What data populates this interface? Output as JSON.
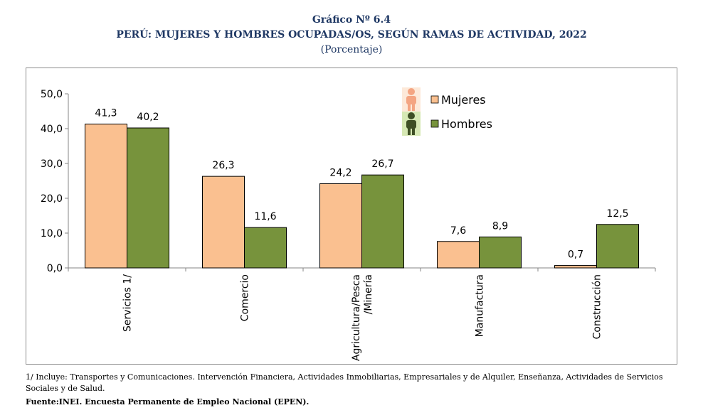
{
  "header": {
    "title": "Gráfico Nº 6.4",
    "subtitle": "PERÚ: MUJERES Y HOMBRES  OCUPADAS/OS, SEGÚN RAMAS DE ACTIVIDAD, 2022",
    "unit": "(Porcentaje)"
  },
  "chart_data": {
    "type": "bar",
    "categories": [
      "Servicios 1/",
      "Comercio",
      "Agricultura/Pesca\n/Minería",
      "Manufactura",
      "Construcción"
    ],
    "series": [
      {
        "name": "Mujeres",
        "values": [
          41.3,
          26.3,
          24.2,
          7.6,
          0.7
        ],
        "labels": [
          "41,3",
          "26,3",
          "24,2",
          "7,6",
          "0,7"
        ],
        "color": "#fac090",
        "icon": "woman-icon"
      },
      {
        "name": "Hombres",
        "values": [
          40.2,
          11.6,
          26.7,
          8.9,
          12.5
        ],
        "labels": [
          "40,2",
          "11,6",
          "26,7",
          "8,9",
          "12,5"
        ],
        "color": "#77933c",
        "icon": "man-icon"
      }
    ],
    "yticks": [
      "0,0",
      "10,0",
      "20,0",
      "30,0",
      "40,0",
      "50,0"
    ],
    "ylim": [
      0,
      50
    ],
    "legend_position": "top-right",
    "grid": false
  },
  "footer": {
    "note": "1/ Incluye: Transportes y Comunicaciones. Intervención Financiera, Actividades Inmobiliarias, Empresariales y de Alquiler, Enseñanza, Actividades de Servicios Sociales y de Salud.",
    "source": "Fuente:INEI. Encuesta Permanente de Empleo Nacional (EPEN)."
  }
}
